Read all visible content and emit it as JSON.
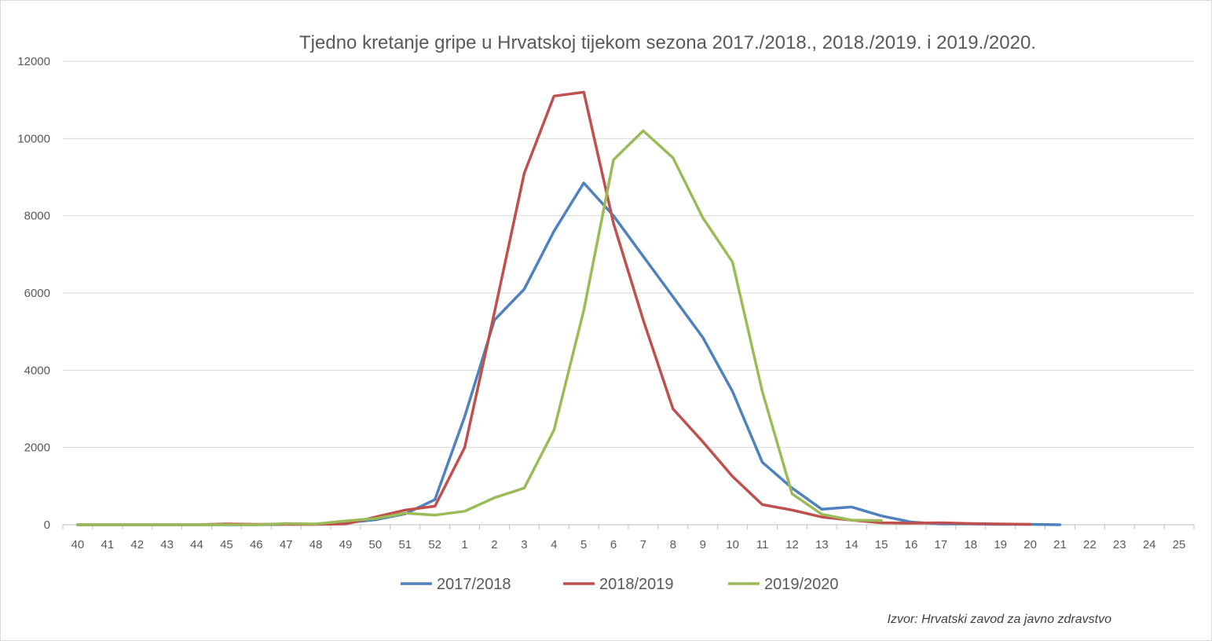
{
  "chart_data": {
    "type": "line",
    "title": "Tjedno kretanje gripe u Hrvatskoj tijekom sezona 2017./2018., 2018./2019. i 2019./2020.",
    "xlabel": "",
    "ylabel": "",
    "ylim": [
      0,
      12000
    ],
    "yticks": [
      "0",
      "2000",
      "4000",
      "6000",
      "8000",
      "10000",
      "12000"
    ],
    "categories": [
      "40",
      "41",
      "42",
      "43",
      "44",
      "45",
      "46",
      "47",
      "48",
      "49",
      "50",
      "51",
      "52",
      "1",
      "2",
      "3",
      "4",
      "5",
      "6",
      "7",
      "8",
      "9",
      "10",
      "11",
      "12",
      "13",
      "14",
      "15",
      "16",
      "17",
      "18",
      "19",
      "20",
      "21",
      "22",
      "23",
      "24",
      "25"
    ],
    "grid": "horizontal",
    "legend_position": "bottom",
    "series": [
      {
        "name": "2017/2018",
        "color": "#4f81bd",
        "values": [
          0,
          0,
          0,
          0,
          0,
          0,
          0,
          10,
          10,
          50,
          130,
          280,
          650,
          2800,
          5300,
          6100,
          7600,
          8850,
          8000,
          6950,
          5900,
          4850,
          3450,
          1620,
          950,
          400,
          460,
          230,
          70,
          20,
          20,
          10,
          10,
          0,
          null,
          null,
          null,
          null
        ]
      },
      {
        "name": "2018/2019",
        "color": "#c0504d",
        "values": [
          0,
          0,
          0,
          0,
          0,
          20,
          10,
          10,
          10,
          20,
          200,
          380,
          480,
          2000,
          5500,
          9100,
          11100,
          11200,
          7800,
          5300,
          3000,
          2150,
          1250,
          520,
          380,
          200,
          120,
          50,
          40,
          50,
          30,
          20,
          10,
          null,
          null,
          null,
          null,
          null
        ]
      },
      {
        "name": "2019/2020",
        "color": "#9bbb59",
        "values": [
          0,
          0,
          0,
          0,
          0,
          0,
          0,
          30,
          20,
          100,
          160,
          300,
          250,
          350,
          700,
          950,
          2450,
          5550,
          9450,
          10200,
          9500,
          7950,
          6800,
          3450,
          800,
          270,
          120,
          110,
          null,
          null,
          null,
          null,
          null,
          null,
          null,
          null,
          null,
          null
        ]
      }
    ],
    "source": "Izvor: Hrvatski zavod za javno zdravstvo"
  }
}
